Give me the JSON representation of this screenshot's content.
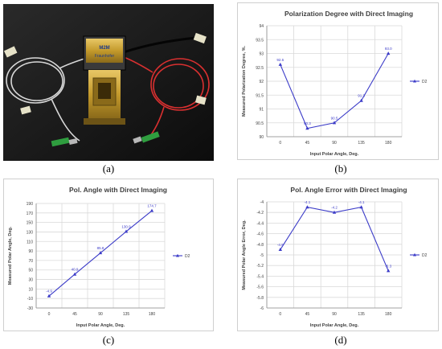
{
  "captions": {
    "a": "(a)",
    "b": "(b)",
    "c": "(c)",
    "d": "(d)"
  },
  "photo": {
    "device_label": "M2M",
    "device_sublabel": "Fraunhofer"
  },
  "chart_data": [
    {
      "id": "b",
      "type": "line",
      "title": "Polarization Degree with Direct Imaging",
      "xlabel": "Input Polar Angle, Deg.",
      "ylabel": "Measured Polarization Degree, %.",
      "categories": [
        "0",
        "45",
        "90",
        "135",
        "180"
      ],
      "series": [
        {
          "name": "D2",
          "values": [
            92.6,
            90.3,
            90.5,
            91.3,
            93.0
          ],
          "labels": [
            "92.6",
            "90.3",
            "90.5",
            "91.3",
            "93.0"
          ],
          "color": "#3b3bc8"
        }
      ],
      "ylim": [
        90,
        94
      ],
      "yticks": [
        90,
        90.5,
        91,
        91.5,
        92,
        92.5,
        93,
        93.5,
        94
      ],
      "yticklabels": [
        "90",
        "90.5",
        "91",
        "91.5",
        "92",
        "92.5",
        "93",
        "93.5",
        "94"
      ],
      "grid": true,
      "legend": "right"
    },
    {
      "id": "c",
      "type": "line",
      "title": "Pol. Angle with Direct Imaging",
      "xlabel": "Input Polar Angle, Deg.",
      "ylabel": "Measured Polar Angle, Deg.",
      "categories": [
        "0",
        "45",
        "90",
        "135",
        "180"
      ],
      "series": [
        {
          "name": "D2",
          "values": [
            -4.9,
            40.9,
            85.8,
            130.9,
            174.7
          ],
          "labels": [
            "-4.9",
            "40.9",
            "85.8",
            "130.9",
            "174.7"
          ],
          "color": "#3b3bc8"
        }
      ],
      "ylim": [
        -30,
        190
      ],
      "yticks": [
        -30,
        -10,
        10,
        30,
        50,
        70,
        90,
        110,
        130,
        150,
        170,
        190
      ],
      "yticklabels": [
        "-30",
        "-10",
        "10",
        "30",
        "50",
        "70",
        "90",
        "110",
        "130",
        "150",
        "170",
        "190"
      ],
      "grid": true,
      "legend": "right"
    },
    {
      "id": "d",
      "type": "line",
      "title": "Pol. Angle Error with Direct Imaging",
      "xlabel": "Input Polar Angle, Deg.",
      "ylabel": "Measured Polar Angle Error, Deg.",
      "categories": [
        "0",
        "45",
        "90",
        "135",
        "180"
      ],
      "series": [
        {
          "name": "D2",
          "values": [
            -4.9,
            -4.1,
            -4.2,
            -4.1,
            -5.3
          ],
          "labels": [
            "-4.9",
            "-4.1",
            "-4.2",
            "-4.1",
            "-5.3"
          ],
          "color": "#3b3bc8"
        }
      ],
      "ylim": [
        -6,
        -4
      ],
      "yticks": [
        -6,
        -5.8,
        -5.6,
        -5.4,
        -5.2,
        -5,
        -4.8,
        -4.6,
        -4.4,
        -4.2,
        -4
      ],
      "yticklabels": [
        "-6",
        "-5.8",
        "-5.6",
        "-5.4",
        "-5.2",
        "-5",
        "-4.8",
        "-4.6",
        "-4.4",
        "-4.2",
        "-4"
      ],
      "grid": true,
      "legend": "right"
    }
  ]
}
